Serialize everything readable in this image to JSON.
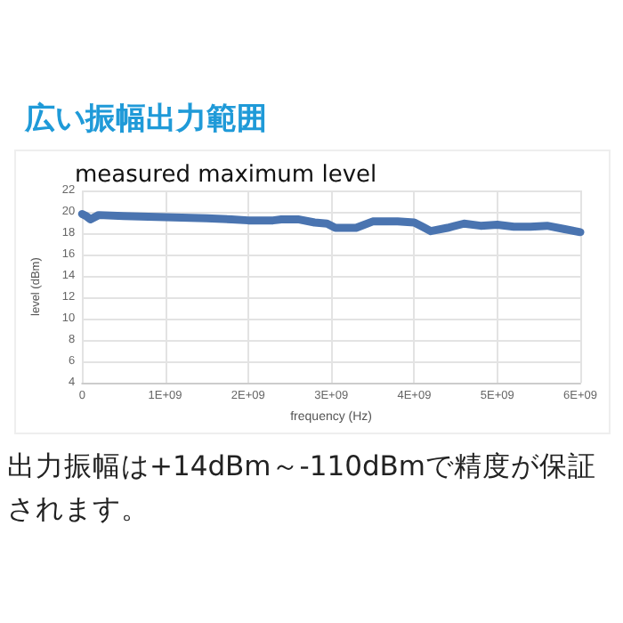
{
  "chart_data": {
    "type": "line",
    "title": "広い振幅出力範囲",
    "subtitle": "measured maximum level",
    "xlabel": "frequency (Hz)",
    "ylabel": "level (dBm)",
    "x": [
      0,
      50000000,
      100000000,
      200000000,
      500000000,
      1000000000,
      1500000000,
      1800000000,
      2000000000,
      2300000000,
      2400000000,
      2600000000,
      2800000000,
      2950000000,
      3050000000,
      3300000000,
      3500000000,
      3800000000,
      4000000000,
      4100000000,
      4200000000,
      4400000000,
      4600000000,
      4800000000,
      5000000000,
      5200000000,
      5400000000,
      5600000000,
      5800000000,
      6000000000
    ],
    "series": [
      {
        "color": "#4a74b0",
        "values": [
          19.8,
          19.6,
          19.3,
          19.7,
          19.6,
          19.5,
          19.4,
          19.3,
          19.2,
          19.2,
          19.3,
          19.3,
          19.0,
          18.9,
          18.5,
          18.5,
          19.1,
          19.1,
          19.0,
          18.6,
          18.2,
          18.5,
          18.9,
          18.7,
          18.8,
          18.6,
          18.6,
          18.7,
          18.4,
          18.1
        ]
      }
    ],
    "xlim": [
      0,
      6000000000
    ],
    "xticks": [
      0,
      {
        "value": 1000000000,
        "label": "1E+09"
      },
      {
        "value": 2000000000,
        "label": "2E+09"
      },
      {
        "value": 3000000000,
        "label": "3E+09"
      },
      {
        "value": 4000000000,
        "label": "4E+09"
      },
      {
        "value": 5000000000,
        "label": "5E+09"
      },
      {
        "value": 6000000000,
        "label": "6E+09"
      }
    ],
    "ylim": [
      4,
      22
    ],
    "yticks": [
      4,
      6,
      8,
      10,
      12,
      14,
      16,
      18,
      20,
      22
    ],
    "grid": true,
    "line_style": "solid",
    "annotations": [
      "出力振幅は+14dBm～-110dBmで精度が保証されます。"
    ]
  }
}
